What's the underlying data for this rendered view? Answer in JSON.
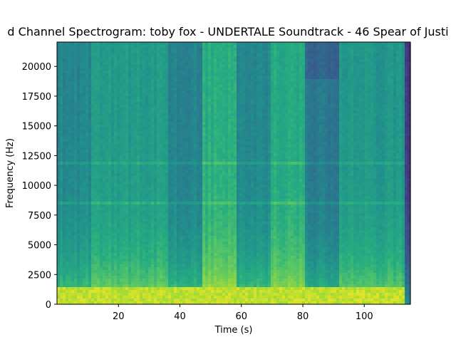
{
  "chart_data": {
    "type": "heatmap",
    "title": "d Channel Spectrogram: toby fox - UNDERTALE Soundtrack - 46 Spear of Justi",
    "xlabel": "Time (s)",
    "ylabel": "Frequency (Hz)",
    "xlim": [
      0,
      115
    ],
    "ylim": [
      0,
      22050
    ],
    "xticks": [
      20,
      40,
      60,
      80,
      100
    ],
    "yticks": [
      0,
      2500,
      5000,
      7500,
      10000,
      12500,
      15000,
      17500,
      20000
    ],
    "colormap": "viridis",
    "grid": false,
    "time_segments": [
      {
        "t_start": 0,
        "t_end": 11,
        "level": 0.46
      },
      {
        "t_start": 11,
        "t_end": 36.5,
        "level": 0.54
      },
      {
        "t_start": 36.5,
        "t_end": 47.5,
        "level": 0.44
      },
      {
        "t_start": 47.5,
        "t_end": 58.5,
        "level": 0.62
      },
      {
        "t_start": 58.5,
        "t_end": 69.5,
        "level": 0.46
      },
      {
        "t_start": 69.5,
        "t_end": 80.5,
        "level": 0.6
      },
      {
        "t_start": 80.5,
        "t_end": 91.5,
        "level": 0.4
      },
      {
        "t_start": 91.5,
        "t_end": 113.5,
        "level": 0.52
      },
      {
        "t_start": 113.5,
        "t_end": 115,
        "level": 0.18
      }
    ],
    "horizontal_lines_hz": [
      8600,
      11850
    ],
    "low_frequency_emphasis_hz": 1500
  }
}
